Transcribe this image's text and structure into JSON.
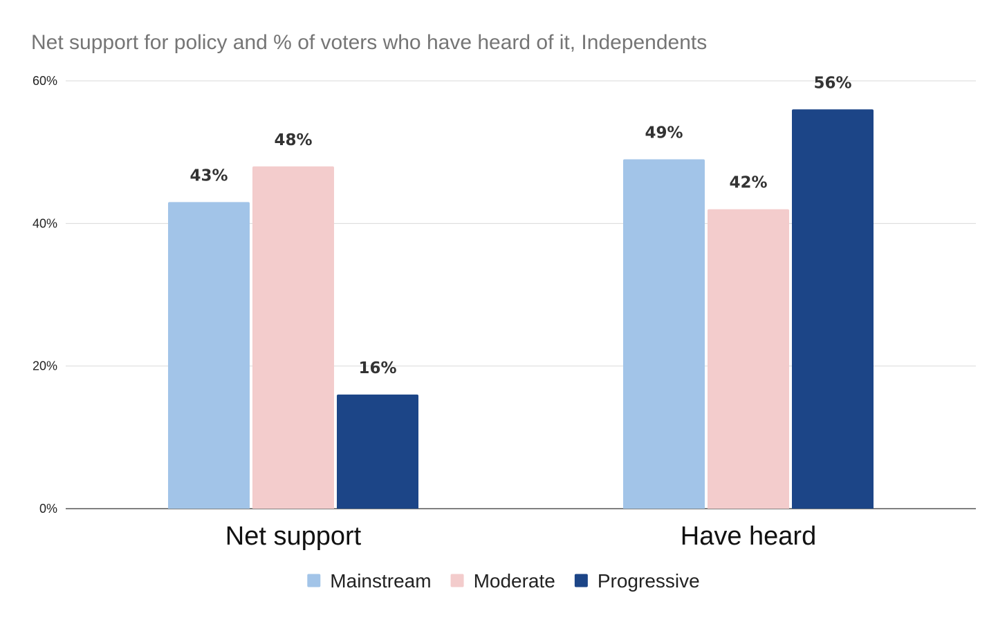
{
  "chart_data": {
    "type": "bar",
    "title": "Net support for policy and % of voters who have heard of it, Independents",
    "xlabel": "",
    "ylabel": "",
    "categories": [
      "Net support",
      "Have heard"
    ],
    "series": [
      {
        "name": "Mainstream",
        "color": "#a2c4e8",
        "values": [
          43,
          49
        ],
        "labels": [
          "43%",
          "49%"
        ]
      },
      {
        "name": "Moderate",
        "color": "#f3cccc",
        "values": [
          48,
          42
        ],
        "labels": [
          "48%",
          "42%"
        ]
      },
      {
        "name": "Progressive",
        "color": "#1c4587",
        "values": [
          16,
          56
        ],
        "labels": [
          "16%",
          "56%"
        ]
      }
    ],
    "ylim": [
      0,
      60
    ],
    "yticks": [
      0,
      20,
      40,
      60
    ],
    "ytick_labels": [
      "0%",
      "20%",
      "40%",
      "60%"
    ],
    "grid": true,
    "legend_position": "bottom-center"
  }
}
